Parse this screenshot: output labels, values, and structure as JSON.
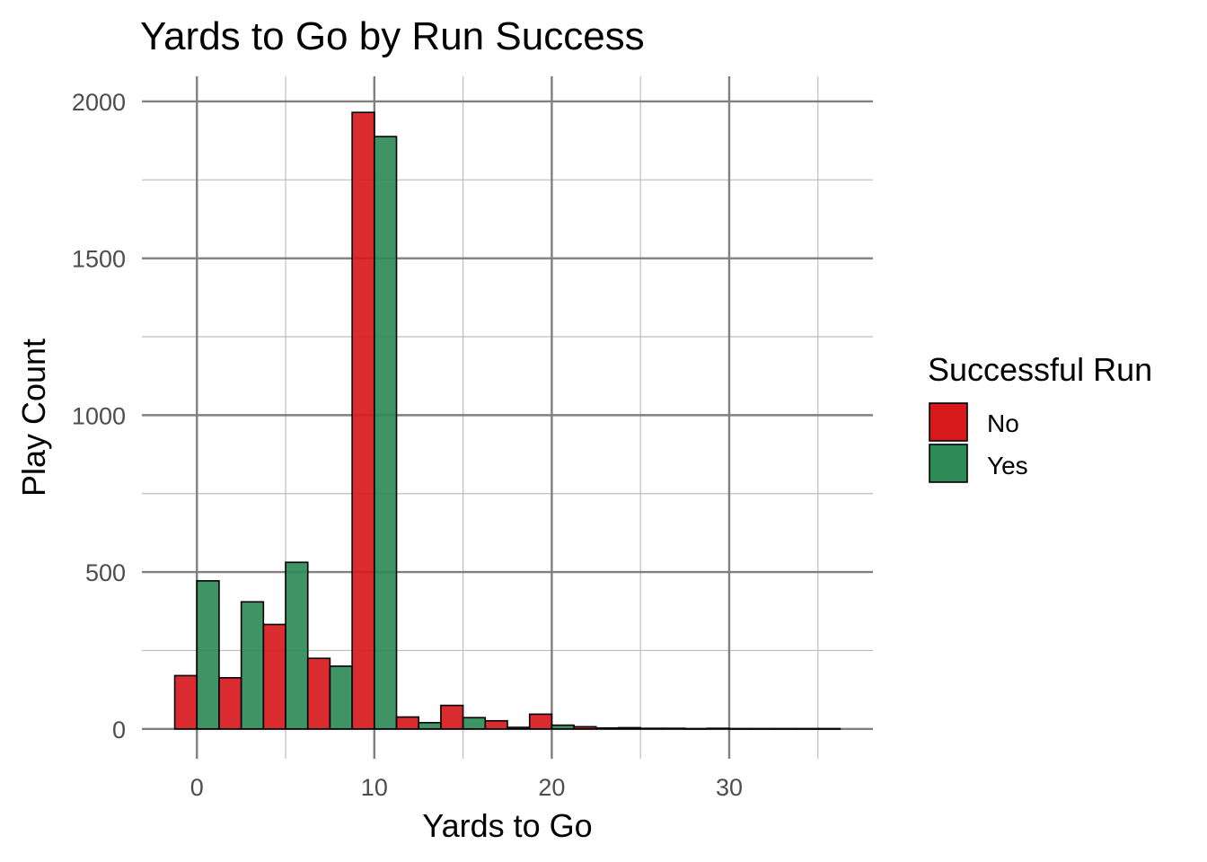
{
  "chart_data": {
    "type": "bar",
    "title": "Yards to Go by Run Success",
    "xlabel": "Yards to Go",
    "ylabel": "Play Count",
    "xlim": [
      -3.1,
      38.1
    ],
    "ylim": [
      -95,
      2080
    ],
    "x_ticks": [
      "0",
      "10",
      "20",
      "30"
    ],
    "y_ticks": [
      "0",
      "500",
      "1000",
      "1500",
      "2000"
    ],
    "grid": true,
    "bin_width": 2.5,
    "bin_starts": [
      -1.25,
      1.25,
      3.75,
      6.25,
      8.75,
      11.25,
      13.75,
      16.25,
      18.75,
      21.25,
      23.75,
      26.25,
      28.75,
      31.25,
      33.75
    ],
    "legend": {
      "title": "Successful Run",
      "position": "right"
    },
    "series": [
      {
        "name": "No",
        "color": "#d7191c",
        "values": [
          170,
          163,
          333,
          225,
          1965,
          38,
          75,
          26,
          47,
          7,
          4,
          2,
          2,
          1,
          1
        ]
      },
      {
        "name": "Yes",
        "color": "#2e8b57",
        "values": [
          472,
          405,
          531,
          200,
          1888,
          20,
          36,
          5,
          12,
          3,
          2,
          1,
          1,
          1,
          1
        ]
      }
    ]
  }
}
